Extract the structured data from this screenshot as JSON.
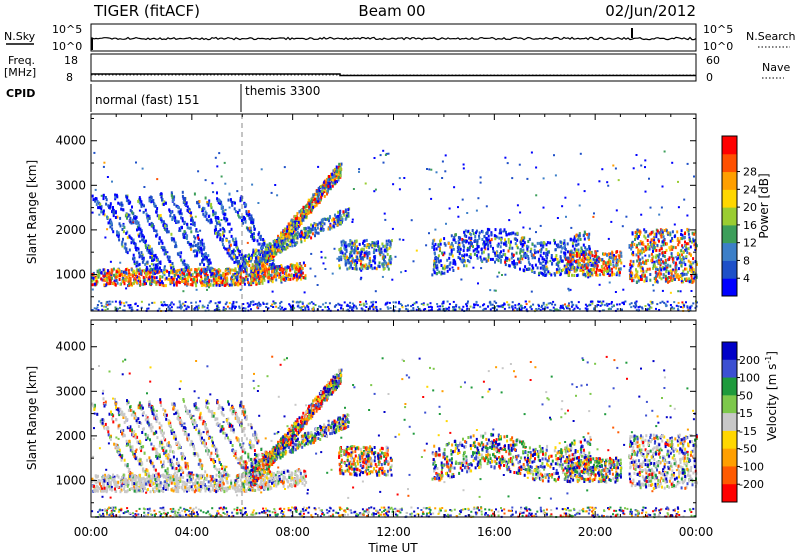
{
  "header": {
    "station": "TIGER (fitACF)",
    "beam": "Beam 00",
    "date": "02/Jun/2012"
  },
  "panels": {
    "nsky_label": "N.Sky",
    "nsky_ticks": [
      "10^5",
      "10^0"
    ],
    "nsearch_label": "N.Search",
    "nsearch_ticks": [
      "10^5",
      "10^0"
    ],
    "freq_label_1": "Freq.",
    "freq_label_2": "[MHz]",
    "freq_ticks": [
      "18",
      "8"
    ],
    "nave_label": "Nave",
    "nave_ticks": [
      "60",
      "0"
    ],
    "cpid_label": "CPID",
    "cpid_segments": [
      {
        "label": "normal (fast) 151",
        "start_h": 0,
        "end_h": 6
      },
      {
        "label": "themis 3300",
        "start_h": 6,
        "end_h": 24
      }
    ]
  },
  "chart_data": [
    {
      "type": "heatmap",
      "title": "Power",
      "xlabel": "",
      "ylabel": "Slant Range [km]",
      "xlim": [
        0,
        24
      ],
      "ylim": [
        180,
        4600
      ],
      "yticks": [
        "1000",
        "2000",
        "3000",
        "4000"
      ],
      "colorbar": {
        "label": "Power [dB]",
        "ticks": [
          "4",
          "8",
          "12",
          "16",
          "20",
          "24",
          "28"
        ],
        "colors": [
          "#0000ff",
          "#1e50c8",
          "#3c7fc8",
          "#3c9e5a",
          "#9acd32",
          "#ffd700",
          "#ff9f00",
          "#ff5000",
          "#ff0000"
        ]
      }
    },
    {
      "type": "heatmap",
      "title": "Velocity",
      "xlabel": "Time UT",
      "ylabel": "Slant Range [km]",
      "xlim": [
        0,
        24
      ],
      "ylim": [
        180,
        4600
      ],
      "xticks": [
        "00:00",
        "04:00",
        "08:00",
        "12:00",
        "16:00",
        "20:00",
        "00:00"
      ],
      "yticks": [
        "1000",
        "2000",
        "3000",
        "4000"
      ],
      "colorbar": {
        "label": "Velocity [m s^-1]",
        "ticks": [
          "200",
          "100",
          "50",
          "15",
          "-15",
          "-50",
          "-100",
          "-200"
        ],
        "colors": [
          "#0000c8",
          "#3c50d2",
          "#1e9a3c",
          "#7dc84b",
          "#c8c8c8",
          "#ffd700",
          "#ff9f00",
          "#ff5a00",
          "#ff0000"
        ]
      }
    }
  ]
}
